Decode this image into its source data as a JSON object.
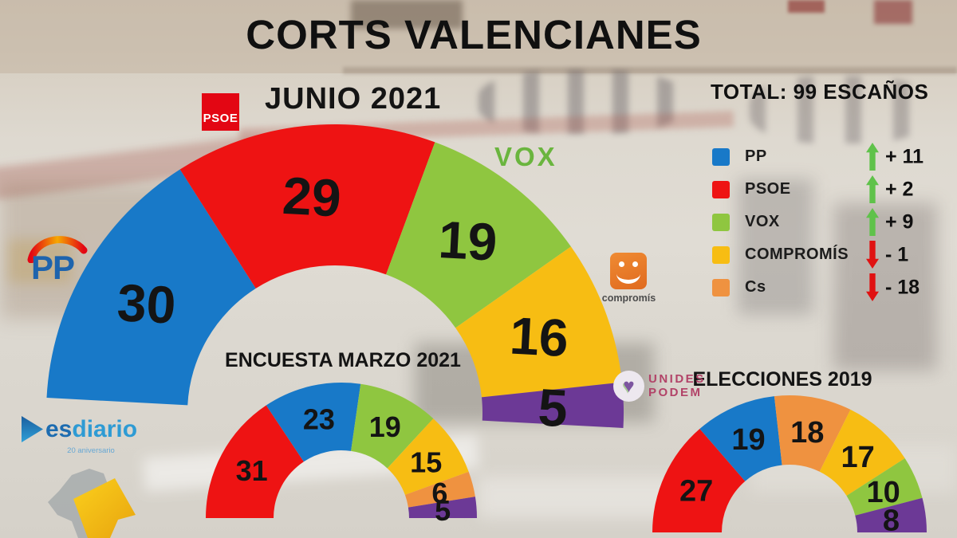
{
  "title": "CORTS VALENCIANES",
  "total_label": "TOTAL: 99 ESCAÑOS",
  "colors": {
    "pp": "#1879c8",
    "psoe": "#ee1313",
    "vox": "#8fc640",
    "compromis": "#f7bd13",
    "cs": "#ef9240",
    "unides_podem": "#6c3996"
  },
  "legend": {
    "arrow_colors": {
      "up": "#5fc24a",
      "down": "#e01212"
    },
    "items": [
      {
        "label": "PP",
        "color": "#1879c8",
        "direction": "up",
        "change": "+ 11"
      },
      {
        "label": "PSOE",
        "color": "#ee1313",
        "direction": "up",
        "change": "+ 2"
      },
      {
        "label": "VOX",
        "color": "#8fc640",
        "direction": "up",
        "change": "+ 9"
      },
      {
        "label": "COMPROMÍS",
        "color": "#f7bd13",
        "direction": "down",
        "change": "- 1"
      },
      {
        "label": "Cs",
        "color": "#ef9240",
        "direction": "down",
        "change": "- 18"
      }
    ]
  },
  "chart_data": [
    {
      "id": "junio2021",
      "type": "half-donut",
      "title": "JUNIO 2021",
      "total": 99,
      "series": [
        {
          "party": "PP",
          "seats": 30,
          "color": "#1879c8"
        },
        {
          "party": "PSOE",
          "seats": 29,
          "color": "#ee1313"
        },
        {
          "party": "VOX",
          "seats": 19,
          "color": "#8fc640"
        },
        {
          "party": "COMPROMIS",
          "seats": 16,
          "color": "#f7bd13"
        },
        {
          "party": "UNIDES-PODEM",
          "seats": 5,
          "color": "#6c3996"
        }
      ]
    },
    {
      "id": "marzo2021",
      "type": "half-donut",
      "title": "ENCUESTA MARZO 2021",
      "total": 99,
      "series": [
        {
          "party": "PSOE",
          "seats": 31,
          "color": "#ee1313"
        },
        {
          "party": "PP",
          "seats": 23,
          "color": "#1879c8"
        },
        {
          "party": "VOX",
          "seats": 19,
          "color": "#8fc640"
        },
        {
          "party": "COMPROMIS",
          "seats": 15,
          "color": "#f7bd13"
        },
        {
          "party": "Cs",
          "seats": 6,
          "color": "#ef9240"
        },
        {
          "party": "UNIDES-PODEM",
          "seats": 5,
          "color": "#6c3996"
        }
      ]
    },
    {
      "id": "elecciones2019",
      "type": "half-donut",
      "title": "ELECCIONES 2019",
      "total": 99,
      "series": [
        {
          "party": "PSOE",
          "seats": 27,
          "color": "#ee1313"
        },
        {
          "party": "PP",
          "seats": 19,
          "color": "#1879c8"
        },
        {
          "party": "Cs",
          "seats": 18,
          "color": "#ef9240"
        },
        {
          "party": "COMPROMIS",
          "seats": 17,
          "color": "#f7bd13"
        },
        {
          "party": "VOX",
          "seats": 10,
          "color": "#8fc640"
        },
        {
          "party": "UNIDES-PODEM",
          "seats": 8,
          "color": "#6c3996"
        }
      ]
    }
  ],
  "logos": {
    "psoe": {
      "text": "PSOE",
      "bg": "#e30613"
    },
    "pp": {
      "text": "PP",
      "color": "#1e64ad"
    },
    "vox": {
      "text": "VOX",
      "color": "#6ab53e"
    },
    "compromis": {
      "text": "compromís"
    },
    "unides_podem": {
      "line1": "UNIDES",
      "line2": "PODEM",
      "color": "#b24368",
      "heart": "♥"
    },
    "esdiario": {
      "text_dark": "es",
      "text_light": "diario",
      "sub": "20 aniversario",
      "color_dark": "#1d6cb0",
      "color_light": "#2e9bd4"
    }
  }
}
